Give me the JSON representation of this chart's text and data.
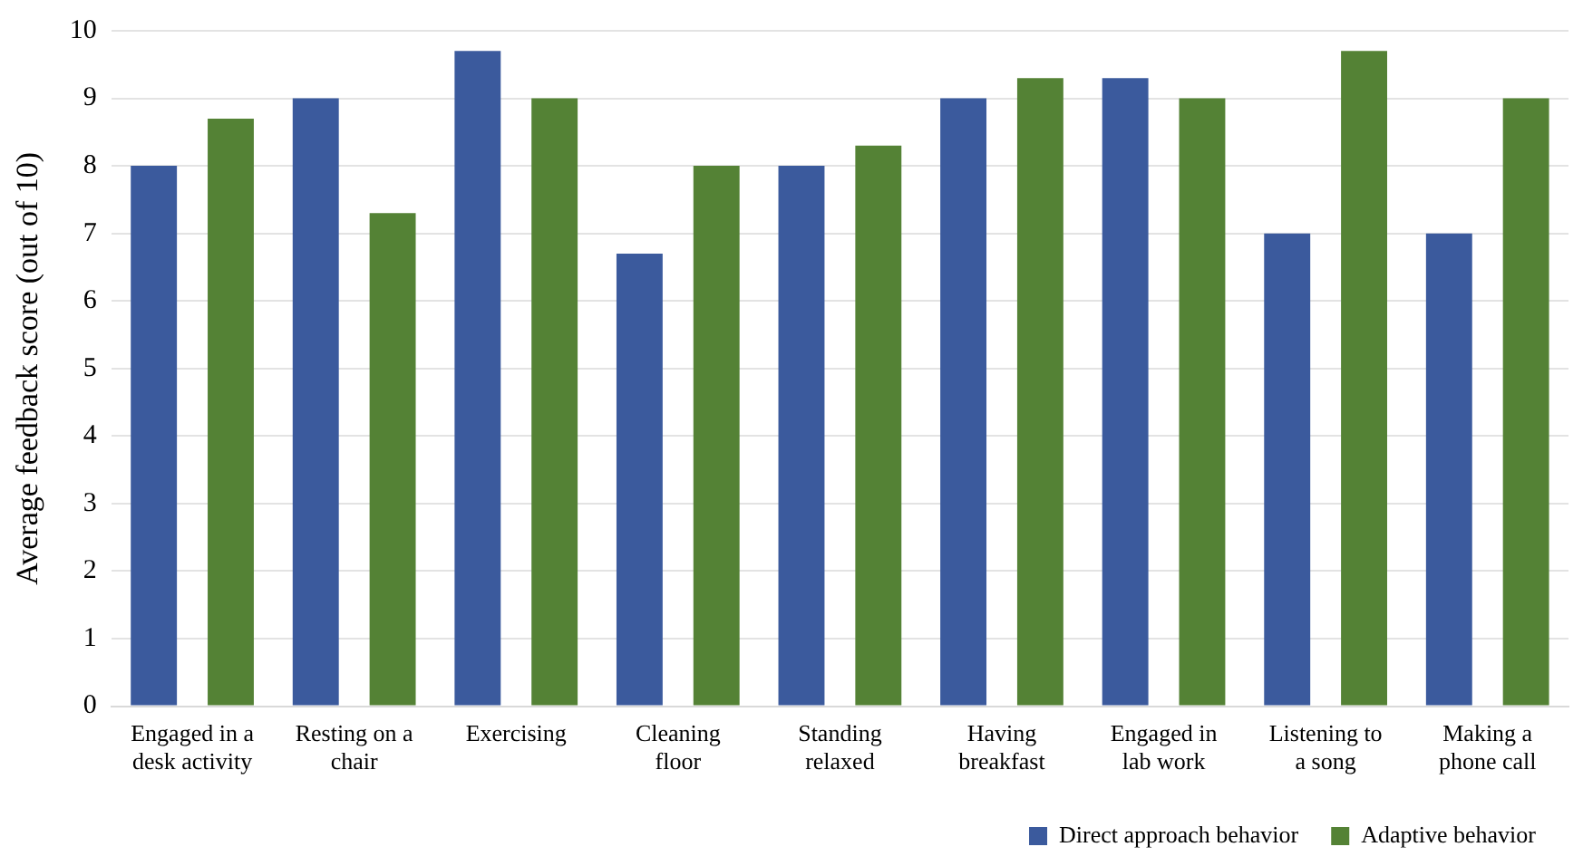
{
  "chart_data": {
    "type": "bar",
    "ylabel": "Average feedback score (out of 10)",
    "categories": [
      "Engaged in a desk activity",
      "Resting on a chair",
      "Exercising",
      "Cleaning floor",
      "Standing relaxed",
      "Having breakfast",
      "Engaged in lab work",
      "Listening to a song",
      "Making a phone call"
    ],
    "series": [
      {
        "name": "Direct approach behavior",
        "color": "#3b5a9d",
        "values": [
          8,
          9,
          9.7,
          6.7,
          8,
          9,
          9.3,
          7,
          7
        ]
      },
      {
        "name": "Adaptive behavior",
        "color": "#548235",
        "values": [
          8.7,
          7.3,
          9,
          8,
          8.3,
          9.3,
          9,
          9.7,
          9
        ]
      }
    ],
    "ylim": [
      0,
      10
    ],
    "yticks": [
      0,
      1,
      2,
      3,
      4,
      5,
      6,
      7,
      8,
      9,
      10
    ],
    "grid": "y",
    "legend": "bottom right"
  }
}
